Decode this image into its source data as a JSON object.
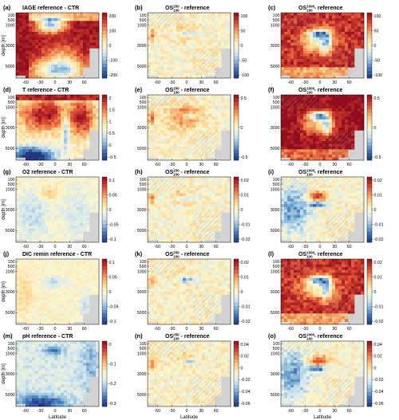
{
  "chart_data": {
    "type": "heatmap",
    "panels": [
      {
        "label": "(a)",
        "title": "IAGE reference - CTR",
        "cbar_ticks": [
          "200",
          "100",
          "0",
          "-100",
          "-200"
        ],
        "vmax": 200,
        "pattern": "age",
        "seed": 11
      },
      {
        "label": "(b)",
        "title_parts": [
          "OS",
          "250",
          "100",
          " - reference"
        ],
        "cbar_ticks": [
          "100",
          "50",
          "0",
          "-50",
          "-100"
        ],
        "vmax": 100,
        "pattern": "diff_small",
        "seed": 12
      },
      {
        "label": "(c)",
        "title_parts": [
          "OS",
          "1000",
          "100",
          " - reference"
        ],
        "cbar_ticks": [
          "100",
          "50",
          "0",
          "-50",
          "-100"
        ],
        "vmax": 100,
        "pattern": "diff_large",
        "seed": 13
      },
      {
        "label": "(d)",
        "title": "T reference - CTR",
        "cbar_ticks": [
          "2",
          "1.5",
          "1",
          "0.5",
          "0",
          "-0.5"
        ],
        "vmax": 2,
        "vmin": -0.5,
        "pattern": "temp",
        "seed": 21
      },
      {
        "label": "(e)",
        "title_parts": [
          "OS",
          "250",
          "100",
          " - reference"
        ],
        "cbar_ticks": [
          "0.5",
          "0",
          "-0.5"
        ],
        "vmax": 0.7,
        "pattern": "diff_small_warm",
        "seed": 22
      },
      {
        "label": "(f)",
        "title_parts": [
          "OS",
          "1000",
          "100",
          " - reference"
        ],
        "cbar_ticks": [
          "0.5",
          "0",
          "-0.5"
        ],
        "vmax": 0.7,
        "pattern": "diff_large_warm",
        "seed": 23
      },
      {
        "label": "(g)",
        "title": "O2 reference - CTR",
        "cbar_ticks": [
          "0.1",
          "0.05",
          "0",
          "-0.05",
          "-0.1"
        ],
        "vmax": 0.1,
        "pattern": "o2",
        "seed": 31
      },
      {
        "label": "(h)",
        "title_parts": [
          "OS",
          "250",
          "100",
          " - reference"
        ],
        "cbar_ticks": [
          "0.02",
          "0.01",
          "0",
          "-0.01",
          "-0.02"
        ],
        "vmax": 0.02,
        "pattern": "diff_small",
        "seed": 32
      },
      {
        "label": "(i)",
        "title_parts": [
          "OS",
          "1000",
          "100",
          " - reference"
        ],
        "cbar_ticks": [
          "0.02",
          "0.01",
          "0",
          "-0.01",
          "-0.02"
        ],
        "vmax": 0.02,
        "pattern": "diff_large_cold",
        "seed": 33
      },
      {
        "label": "(j)",
        "title": "DIC remin reference - CTR",
        "cbar_ticks": [
          "0.1",
          "0.05",
          "0",
          "-0.05",
          "-0.1"
        ],
        "vmax": 0.1,
        "pattern": "dic",
        "seed": 41
      },
      {
        "label": "(k)",
        "title_parts": [
          "OS",
          "250",
          "100",
          " - reference"
        ],
        "cbar_ticks": [
          "0.02",
          "0.01",
          "0",
          "-0.01",
          "-0.02"
        ],
        "vmax": 0.02,
        "pattern": "diff_small_cold",
        "seed": 42
      },
      {
        "label": "(l)",
        "title_parts": [
          "OS",
          "1000",
          "100",
          " - reference"
        ],
        "cbar_ticks": [
          "0.02",
          "0.01",
          "0",
          "-0.01",
          "-0.02"
        ],
        "vmax": 0.02,
        "pattern": "diff_large",
        "seed": 43
      },
      {
        "label": "(m)",
        "title": "pH reference - CTR",
        "cbar_ticks": [
          "0",
          "-0.1",
          "-0.2",
          "-0.3"
        ],
        "vmax": 0,
        "vmin": -0.3,
        "pattern": "ph",
        "seed": 51
      },
      {
        "label": "(n)",
        "title_parts": [
          "OS",
          "250",
          "100",
          " - reference"
        ],
        "cbar_ticks": [
          "0.04",
          "0.02",
          "0",
          "-0.02",
          "-0.04",
          "-0.06"
        ],
        "vmax": 0.05,
        "pattern": "diff_small",
        "seed": 52
      },
      {
        "label": "(o)",
        "title_parts": [
          "OS",
          "1000",
          "100",
          " - reference"
        ],
        "cbar_ticks": [
          "0.04",
          "0.02",
          "0",
          "-0.02",
          "-0.04",
          "-0.06"
        ],
        "vmax": 0.05,
        "pattern": "diff_large_cold",
        "seed": 53
      }
    ],
    "y_ticks": [
      "100",
      "500",
      "1000",
      "3000",
      "5000"
    ],
    "y_tick_values": [
      100,
      500,
      1000,
      3000,
      5000
    ],
    "x_ticks": [
      "-60",
      "-30",
      "0",
      "30",
      "60"
    ],
    "x_tick_values": [
      -60,
      -30,
      0,
      30,
      60
    ],
    "ylabel": "depth [m]",
    "xlabel": "Latitude",
    "colormap": [
      "#23377f",
      "#3a6cb2",
      "#86b6d7",
      "#d4e8f0",
      "#fdf6cc",
      "#fbd08b",
      "#f08a4f",
      "#cf3a2c",
      "#8f0d1e"
    ],
    "land_color": "#d3d3d3"
  }
}
